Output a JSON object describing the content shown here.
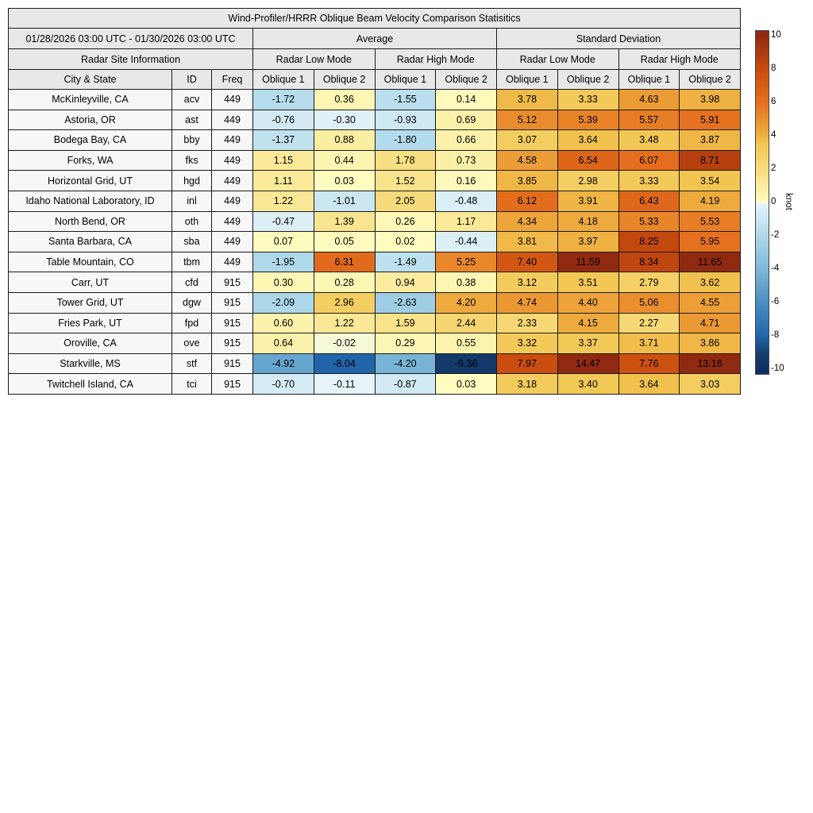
{
  "chart_data": {
    "type": "heatmap",
    "title": "Wind-Profiler/HRRR Oblique Beam Velocity Comparison Statisitics",
    "period": "01/28/2026 03:00 UTC - 01/30/2026 03:00 UTC",
    "groups": {
      "site_info": "Radar Site Information",
      "average": "Average",
      "std": "Standard Deviation",
      "low_mode": "Radar Low Mode",
      "high_mode": "Radar High Mode"
    },
    "columns": [
      "City & State",
      "ID",
      "Freq",
      "Oblique 1",
      "Oblique 2",
      "Oblique 1",
      "Oblique 2",
      "Oblique 1",
      "Oblique 2",
      "Oblique 1",
      "Oblique 2"
    ],
    "rows": [
      {
        "city": "McKinleyville, CA",
        "id": "acv",
        "freq": 449,
        "values": [
          -1.72,
          0.36,
          -1.55,
          0.14,
          3.78,
          3.33,
          4.63,
          3.98
        ]
      },
      {
        "city": "Astoria, OR",
        "id": "ast",
        "freq": 449,
        "values": [
          -0.76,
          -0.3,
          -0.93,
          0.69,
          5.12,
          5.39,
          5.57,
          5.91
        ]
      },
      {
        "city": "Bodega Bay, CA",
        "id": "bby",
        "freq": 449,
        "values": [
          -1.37,
          0.88,
          -1.8,
          0.66,
          3.07,
          3.64,
          3.48,
          3.87
        ]
      },
      {
        "city": "Forks, WA",
        "id": "fks",
        "freq": 449,
        "values": [
          1.15,
          0.44,
          1.78,
          0.73,
          4.58,
          6.54,
          6.07,
          8.71
        ]
      },
      {
        "city": "Horizontal Grid, UT",
        "id": "hgd",
        "freq": 449,
        "values": [
          1.11,
          0.03,
          1.52,
          0.16,
          3.85,
          2.98,
          3.33,
          3.54
        ]
      },
      {
        "city": "Idaho National Laboratory, ID",
        "id": "inl",
        "freq": 449,
        "values": [
          1.22,
          -1.01,
          2.05,
          -0.48,
          6.12,
          3.91,
          6.43,
          4.19
        ]
      },
      {
        "city": "North Bend, OR",
        "id": "oth",
        "freq": 449,
        "values": [
          -0.47,
          1.39,
          0.26,
          1.17,
          4.34,
          4.18,
          5.33,
          5.53
        ]
      },
      {
        "city": "Santa Barbara, CA",
        "id": "sba",
        "freq": 449,
        "values": [
          0.07,
          0.05,
          0.02,
          -0.44,
          3.81,
          3.97,
          8.25,
          5.95
        ]
      },
      {
        "city": "Table Mountain, CO",
        "id": "tbm",
        "freq": 449,
        "values": [
          -1.95,
          6.31,
          -1.49,
          5.25,
          7.4,
          11.59,
          8.34,
          11.65
        ]
      },
      {
        "city": "Carr, UT",
        "id": "cfd",
        "freq": 915,
        "values": [
          0.3,
          0.28,
          0.94,
          0.38,
          3.12,
          3.51,
          2.79,
          3.62
        ]
      },
      {
        "city": "Tower Grid, UT",
        "id": "dgw",
        "freq": 915,
        "values": [
          -2.09,
          2.96,
          -2.63,
          4.2,
          4.74,
          4.4,
          5.06,
          4.55
        ]
      },
      {
        "city": "Fries Park, UT",
        "id": "fpd",
        "freq": 915,
        "values": [
          0.6,
          1.22,
          1.59,
          2.44,
          2.33,
          4.15,
          2.27,
          4.71
        ]
      },
      {
        "city": "Oroville, CA",
        "id": "ove",
        "freq": 915,
        "values": [
          0.64,
          -0.02,
          0.29,
          0.55,
          3.32,
          3.37,
          3.71,
          3.86
        ]
      },
      {
        "city": "Starkville, MS",
        "id": "stf",
        "freq": 915,
        "values": [
          -4.92,
          -8.04,
          -4.2,
          -9.36,
          7.97,
          14.47,
          7.76,
          13.16
        ]
      },
      {
        "city": "Twitchell Island, CA",
        "id": "tci",
        "freq": 915,
        "values": [
          -0.7,
          -0.11,
          -0.87,
          0.03,
          3.18,
          3.4,
          3.64,
          3.03
        ]
      }
    ],
    "colorbar": {
      "label": "knot",
      "vmin": -10,
      "vmax": 10,
      "ticks": [
        10,
        8,
        6,
        4,
        2,
        0,
        -2,
        -4,
        -6,
        -8,
        -10
      ]
    },
    "colormap_anchors": [
      [
        -10,
        "#0d2f60"
      ],
      [
        -9,
        "#16406f"
      ],
      [
        -8,
        "#2266ac"
      ],
      [
        -6,
        "#4a8ec2"
      ],
      [
        -4,
        "#7eb8d8"
      ],
      [
        -2,
        "#aed8ea"
      ],
      [
        -0.05,
        "#e8f5fa"
      ],
      [
        0,
        "#fefcc0"
      ],
      [
        2,
        "#f7db7c"
      ],
      [
        3.5,
        "#f2c754"
      ],
      [
        4,
        "#efb040"
      ],
      [
        6,
        "#e56f1e"
      ],
      [
        8,
        "#c94c0e"
      ],
      [
        10,
        "#8f2a11"
      ]
    ]
  }
}
